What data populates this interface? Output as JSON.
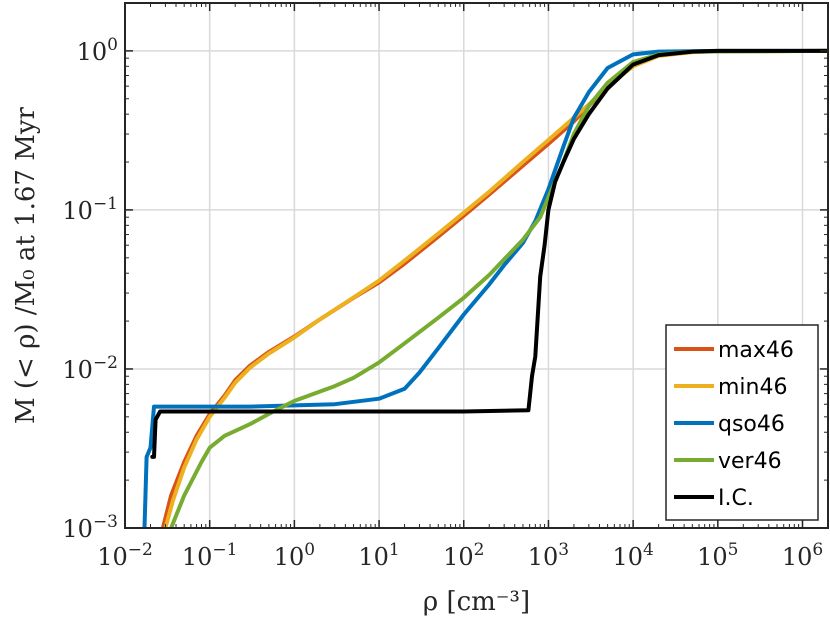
{
  "chart_data": {
    "type": "line",
    "title": "",
    "xlabel": "ρ [cm⁻³]",
    "ylabel": "M (< ρ) /M₀ at 1.67 Myr",
    "x_scale": "log",
    "y_scale": "log",
    "xlim": [
      0.01,
      2000000
    ],
    "ylim": [
      0.001,
      2
    ],
    "grid": true,
    "legend_position": "bottom-right",
    "x_ticks": [
      {
        "value": 0.01,
        "base": "10",
        "exp": "−2"
      },
      {
        "value": 0.1,
        "base": "10",
        "exp": "−1"
      },
      {
        "value": 1,
        "base": "10",
        "exp": "0"
      },
      {
        "value": 10,
        "base": "10",
        "exp": "1"
      },
      {
        "value": 100,
        "base": "10",
        "exp": "2"
      },
      {
        "value": 1000,
        "base": "10",
        "exp": "3"
      },
      {
        "value": 10000,
        "base": "10",
        "exp": "4"
      },
      {
        "value": 100000,
        "base": "10",
        "exp": "5"
      },
      {
        "value": 1000000,
        "base": "10",
        "exp": "6"
      }
    ],
    "y_ticks": [
      {
        "value": 0.001,
        "base": "10",
        "exp": "−3"
      },
      {
        "value": 0.01,
        "base": "10",
        "exp": "−2"
      },
      {
        "value": 0.1,
        "base": "10",
        "exp": "−1"
      },
      {
        "value": 1,
        "base": "10",
        "exp": "0"
      }
    ],
    "series": [
      {
        "name": "max46",
        "color": "#D95319",
        "points": [
          [
            0.028,
            0.001
          ],
          [
            0.035,
            0.0016
          ],
          [
            0.05,
            0.0026
          ],
          [
            0.07,
            0.0038
          ],
          [
            0.1,
            0.0052
          ],
          [
            0.15,
            0.0068
          ],
          [
            0.2,
            0.0085
          ],
          [
            0.3,
            0.0105
          ],
          [
            0.5,
            0.0128
          ],
          [
            1,
            0.016
          ],
          [
            2,
            0.0205
          ],
          [
            5,
            0.028
          ],
          [
            10,
            0.035
          ],
          [
            20,
            0.046
          ],
          [
            50,
            0.068
          ],
          [
            100,
            0.092
          ],
          [
            200,
            0.125
          ],
          [
            500,
            0.19
          ],
          [
            1000,
            0.26
          ],
          [
            2000,
            0.36
          ],
          [
            3000,
            0.45
          ],
          [
            5000,
            0.6
          ],
          [
            10000,
            0.82
          ],
          [
            20000,
            0.94
          ],
          [
            50000,
            0.985
          ],
          [
            100000,
            0.995
          ],
          [
            2000000,
            1.0
          ]
        ]
      },
      {
        "name": "min46",
        "color": "#EDB120",
        "points": [
          [
            0.03,
            0.001
          ],
          [
            0.037,
            0.0015
          ],
          [
            0.05,
            0.0024
          ],
          [
            0.07,
            0.0036
          ],
          [
            0.1,
            0.005
          ],
          [
            0.15,
            0.0066
          ],
          [
            0.2,
            0.0082
          ],
          [
            0.3,
            0.0102
          ],
          [
            0.5,
            0.0125
          ],
          [
            1,
            0.0158
          ],
          [
            2,
            0.0205
          ],
          [
            5,
            0.0282
          ],
          [
            10,
            0.036
          ],
          [
            20,
            0.048
          ],
          [
            50,
            0.071
          ],
          [
            100,
            0.096
          ],
          [
            200,
            0.13
          ],
          [
            500,
            0.2
          ],
          [
            1000,
            0.275
          ],
          [
            2000,
            0.38
          ],
          [
            3000,
            0.46
          ],
          [
            5000,
            0.6
          ],
          [
            10000,
            0.8
          ],
          [
            20000,
            0.93
          ],
          [
            50000,
            0.982
          ],
          [
            100000,
            0.994
          ],
          [
            2000000,
            1.0
          ]
        ]
      },
      {
        "name": "qso46",
        "color": "#0072BD",
        "points": [
          [
            0.017,
            0.001
          ],
          [
            0.018,
            0.0028
          ],
          [
            0.02,
            0.0032
          ],
          [
            0.022,
            0.0058
          ],
          [
            0.05,
            0.0058
          ],
          [
            0.1,
            0.0058
          ],
          [
            0.3,
            0.0058
          ],
          [
            1,
            0.0059
          ],
          [
            3,
            0.006
          ],
          [
            10,
            0.0065
          ],
          [
            20,
            0.0075
          ],
          [
            30,
            0.0095
          ],
          [
            50,
            0.0135
          ],
          [
            100,
            0.022
          ],
          [
            200,
            0.034
          ],
          [
            300,
            0.045
          ],
          [
            500,
            0.062
          ],
          [
            700,
            0.085
          ],
          [
            1000,
            0.135
          ],
          [
            1500,
            0.25
          ],
          [
            2000,
            0.38
          ],
          [
            3000,
            0.55
          ],
          [
            5000,
            0.78
          ],
          [
            10000,
            0.95
          ],
          [
            20000,
            0.99
          ],
          [
            100000,
            1.0
          ],
          [
            2000000,
            1.0
          ]
        ]
      },
      {
        "name": "ver46",
        "color": "#77AC30",
        "points": [
          [
            0.035,
            0.001
          ],
          [
            0.05,
            0.0016
          ],
          [
            0.08,
            0.0026
          ],
          [
            0.1,
            0.0032
          ],
          [
            0.15,
            0.0038
          ],
          [
            0.3,
            0.0045
          ],
          [
            0.6,
            0.0055
          ],
          [
            1,
            0.0063
          ],
          [
            3,
            0.0078
          ],
          [
            5,
            0.0088
          ],
          [
            10,
            0.011
          ],
          [
            20,
            0.0145
          ],
          [
            50,
            0.021
          ],
          [
            100,
            0.028
          ],
          [
            200,
            0.039
          ],
          [
            500,
            0.065
          ],
          [
            800,
            0.09
          ],
          [
            1000,
            0.12
          ],
          [
            1500,
            0.2
          ],
          [
            2000,
            0.3
          ],
          [
            3000,
            0.45
          ],
          [
            5000,
            0.63
          ],
          [
            10000,
            0.85
          ],
          [
            20000,
            0.95
          ],
          [
            50000,
            0.99
          ],
          [
            2000000,
            1.0
          ]
        ]
      },
      {
        "name": "I.C.",
        "color": "#000000",
        "points": [
          [
            0.021,
            0.0028
          ],
          [
            0.022,
            0.0028
          ],
          [
            0.023,
            0.0048
          ],
          [
            0.026,
            0.0054
          ],
          [
            0.1,
            0.0054
          ],
          [
            1,
            0.0054
          ],
          [
            10,
            0.0054
          ],
          [
            100,
            0.0054
          ],
          [
            580,
            0.0055
          ],
          [
            640,
            0.009
          ],
          [
            700,
            0.012
          ],
          [
            800,
            0.038
          ],
          [
            900,
            0.06
          ],
          [
            1000,
            0.1
          ],
          [
            1200,
            0.15
          ],
          [
            1500,
            0.2
          ],
          [
            2000,
            0.28
          ],
          [
            3000,
            0.4
          ],
          [
            5000,
            0.58
          ],
          [
            10000,
            0.82
          ],
          [
            20000,
            0.94
          ],
          [
            50000,
            0.99
          ],
          [
            100000,
            1.0
          ],
          [
            2000000,
            1.0
          ]
        ]
      }
    ]
  }
}
